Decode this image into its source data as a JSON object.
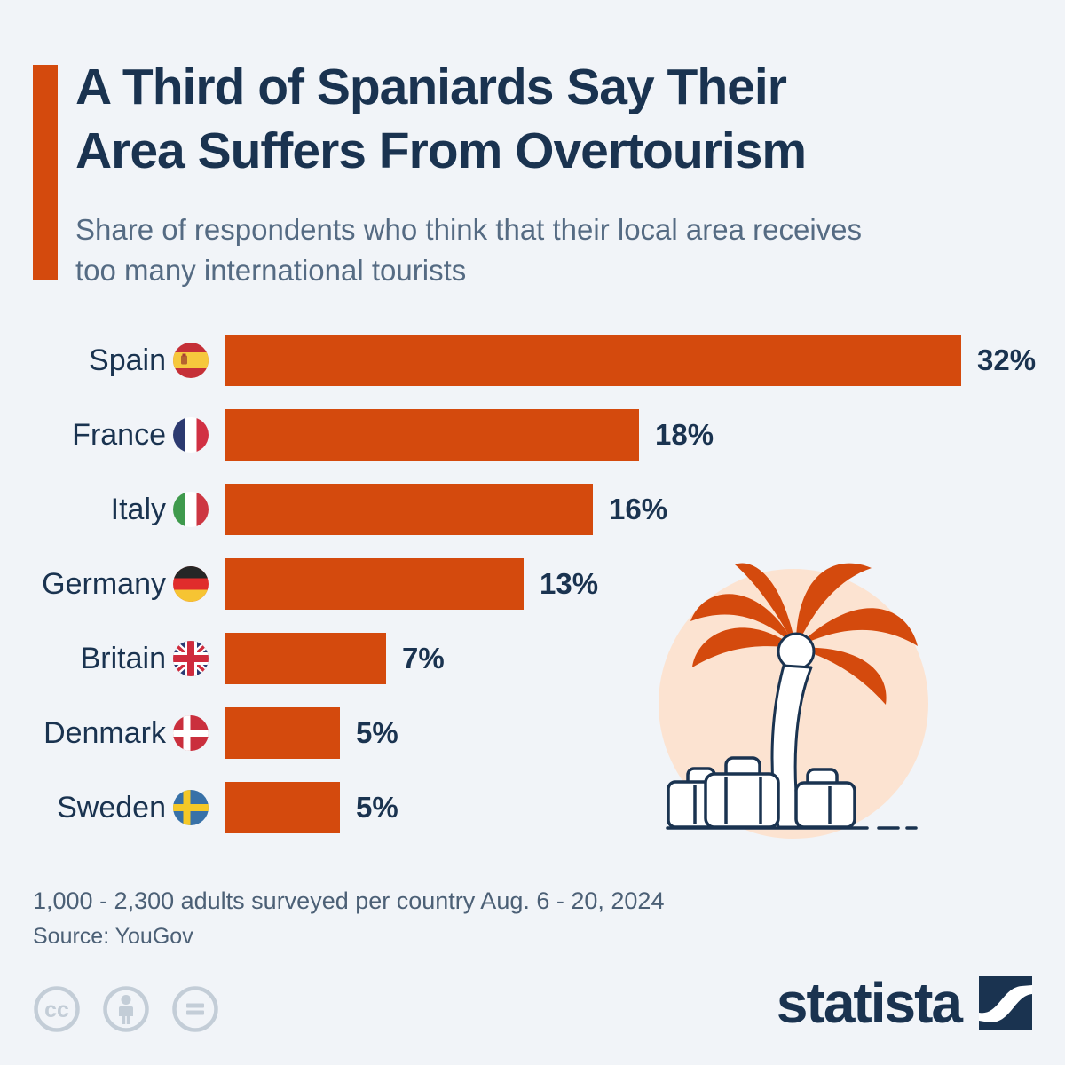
{
  "chart_data": {
    "type": "bar",
    "orientation": "horizontal",
    "title": "A Third of Spaniards Say Their Area Suffers From Overtourism",
    "title_lines": [
      "A Third of Spaniards Say Their",
      "Area Suffers From Overtourism"
    ],
    "subtitle": "Share of respondents who think that their local area receives too many international tourists",
    "categories": [
      "Spain",
      "France",
      "Italy",
      "Germany",
      "Britain",
      "Denmark",
      "Sweden"
    ],
    "values": [
      32,
      18,
      16,
      13,
      7,
      5,
      5
    ],
    "value_labels": [
      "32%",
      "18%",
      "16%",
      "13%",
      "7%",
      "5%",
      "5%"
    ],
    "flags": [
      "spain",
      "france",
      "italy",
      "germany",
      "britain",
      "denmark",
      "sweden"
    ],
    "unit": "%",
    "xlim": [
      0,
      32
    ],
    "grid": false,
    "legend": false,
    "note": "1,000 - 2,300 adults surveyed per country Aug. 6 - 20, 2024",
    "source": "Source: YouGov"
  },
  "branding": {
    "logo_text": "statista"
  },
  "license": {
    "icons": [
      "cc-icon",
      "attribution-person-icon",
      "no-derivatives-equals-icon"
    ]
  },
  "illustration": {
    "description": "palm-tree-with-luggage"
  },
  "colors": {
    "accent": "#d44a0d",
    "navy": "#1a3350",
    "subtitle": "#556b83",
    "note": "#4c6076",
    "background": "#f1f4f8",
    "peach": "#fce3d1",
    "icon_gray": "#c3cdd7"
  }
}
